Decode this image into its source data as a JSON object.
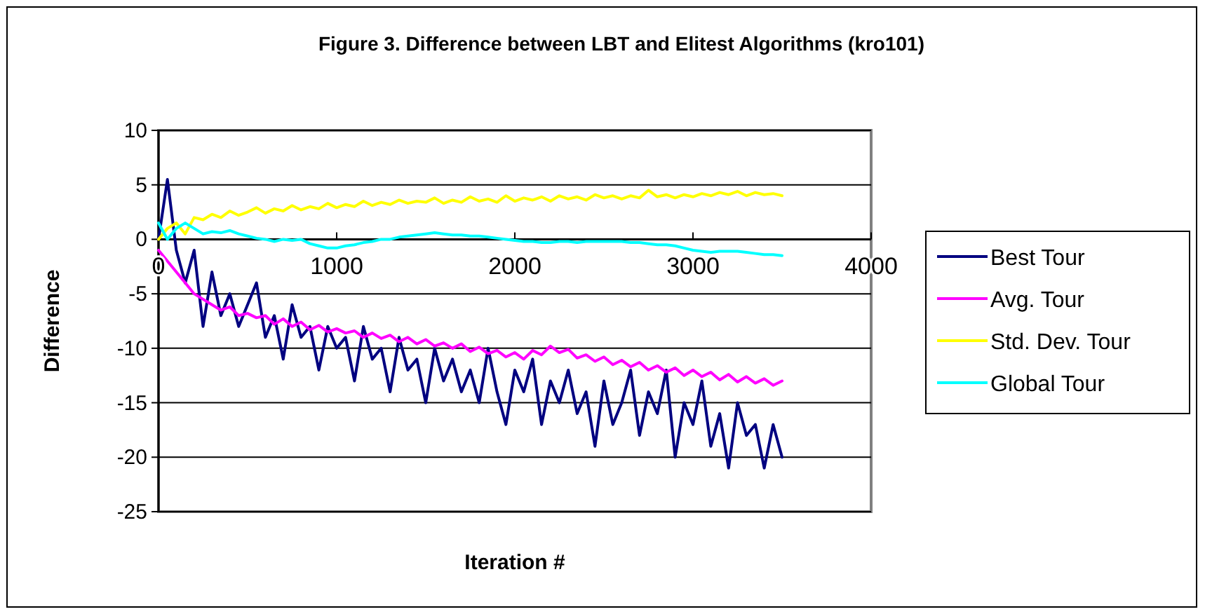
{
  "chart_data": {
    "type": "line",
    "title": "Figure 3. Difference between LBT and Elitest Algorithms (kro101)",
    "xlabel": "Iteration #",
    "ylabel": "Difference",
    "xlim": [
      0,
      4000
    ],
    "xticks": [
      0,
      1000,
      2000,
      3000,
      4000
    ],
    "ylim": [
      -25,
      10
    ],
    "yticks": [
      -25,
      -20,
      -15,
      -10,
      -5,
      0,
      5,
      10
    ],
    "grid": "y",
    "legend": "right",
    "marker": "none",
    "line_style": "solid",
    "x": [
      0,
      50,
      100,
      150,
      200,
      250,
      300,
      350,
      400,
      450,
      500,
      550,
      600,
      650,
      700,
      750,
      800,
      850,
      900,
      950,
      1000,
      1050,
      1100,
      1150,
      1200,
      1250,
      1300,
      1350,
      1400,
      1450,
      1500,
      1550,
      1600,
      1650,
      1700,
      1750,
      1800,
      1850,
      1900,
      1950,
      2000,
      2050,
      2100,
      2150,
      2200,
      2250,
      2300,
      2350,
      2400,
      2450,
      2500,
      2550,
      2600,
      2650,
      2700,
      2750,
      2800,
      2850,
      2900,
      2950,
      3000,
      3050,
      3100,
      3150,
      3200,
      3250,
      3300,
      3350,
      3400,
      3450,
      3500
    ],
    "series": [
      {
        "name": "Best Tour",
        "color": "#000080",
        "values": [
          0,
          5.5,
          -1,
          -4,
          -1,
          -8,
          -3,
          -7,
          -5,
          -8,
          -6,
          -4,
          -9,
          -7,
          -11,
          -6,
          -9,
          -8,
          -12,
          -8,
          -10,
          -9,
          -13,
          -8,
          -11,
          -10,
          -14,
          -9,
          -12,
          -11,
          -15,
          -10,
          -13,
          -11,
          -14,
          -12,
          -15,
          -10,
          -14,
          -17,
          -12,
          -14,
          -11,
          -17,
          -13,
          -15,
          -12,
          -16,
          -14,
          -19,
          -13,
          -17,
          -15,
          -12,
          -18,
          -14,
          -16,
          -12,
          -20,
          -15,
          -17,
          -13,
          -19,
          -16,
          -21,
          -15,
          -18,
          -17,
          -21,
          -17,
          -20
        ]
      },
      {
        "name": "Avg. Tour",
        "color": "#ff00ff",
        "values": [
          -1,
          -2,
          -3,
          -4,
          -5,
          -5.5,
          -6,
          -6.5,
          -6.2,
          -7,
          -6.8,
          -7.2,
          -7,
          -7.8,
          -7.3,
          -8,
          -7.6,
          -8.3,
          -7.9,
          -8.5,
          -8.2,
          -8.6,
          -8.4,
          -9,
          -8.6,
          -9.1,
          -8.8,
          -9.4,
          -9,
          -9.6,
          -9.2,
          -9.8,
          -9.5,
          -10,
          -9.6,
          -10.3,
          -9.9,
          -10.5,
          -10.2,
          -10.8,
          -10.4,
          -11,
          -10.2,
          -10.6,
          -9.8,
          -10.4,
          -10.1,
          -10.9,
          -10.6,
          -11.2,
          -10.8,
          -11.5,
          -11.1,
          -11.7,
          -11.3,
          -12,
          -11.6,
          -12.2,
          -11.8,
          -12.5,
          -12,
          -12.6,
          -12.2,
          -12.9,
          -12.4,
          -13.1,
          -12.6,
          -13.2,
          -12.8,
          -13.4,
          -13
        ]
      },
      {
        "name": "Std. Dev. Tour",
        "color": "#ffff00",
        "values": [
          0,
          1,
          1.5,
          0.5,
          2,
          1.8,
          2.3,
          2,
          2.6,
          2.2,
          2.5,
          2.9,
          2.4,
          2.8,
          2.6,
          3.1,
          2.7,
          3,
          2.8,
          3.3,
          2.9,
          3.2,
          3,
          3.5,
          3.1,
          3.4,
          3.2,
          3.6,
          3.3,
          3.5,
          3.4,
          3.8,
          3.3,
          3.6,
          3.4,
          3.9,
          3.5,
          3.7,
          3.4,
          4,
          3.5,
          3.8,
          3.6,
          3.9,
          3.5,
          4,
          3.7,
          3.9,
          3.6,
          4.1,
          3.8,
          4,
          3.7,
          4,
          3.8,
          4.5,
          3.9,
          4.1,
          3.8,
          4.1,
          3.9,
          4.2,
          4,
          4.3,
          4.1,
          4.4,
          4,
          4.3,
          4.1,
          4.2,
          4
        ]
      },
      {
        "name": "Global Tour",
        "color": "#00ffff",
        "values": [
          1.5,
          0,
          1,
          1.5,
          1,
          0.5,
          0.7,
          0.6,
          0.8,
          0.5,
          0.3,
          0.1,
          0,
          -0.2,
          0,
          -0.1,
          0,
          -0.4,
          -0.6,
          -0.8,
          -0.8,
          -0.6,
          -0.5,
          -0.3,
          -0.2,
          0,
          0,
          0.2,
          0.3,
          0.4,
          0.5,
          0.6,
          0.5,
          0.4,
          0.4,
          0.3,
          0.3,
          0.2,
          0.1,
          0,
          -0.1,
          -0.2,
          -0.2,
          -0.3,
          -0.3,
          -0.2,
          -0.2,
          -0.3,
          -0.2,
          -0.2,
          -0.2,
          -0.2,
          -0.2,
          -0.3,
          -0.3,
          -0.4,
          -0.5,
          -0.5,
          -0.6,
          -0.8,
          -1,
          -1.1,
          -1.2,
          -1.1,
          -1.1,
          -1.1,
          -1.2,
          -1.3,
          -1.4,
          -1.4,
          -1.5
        ]
      }
    ]
  }
}
